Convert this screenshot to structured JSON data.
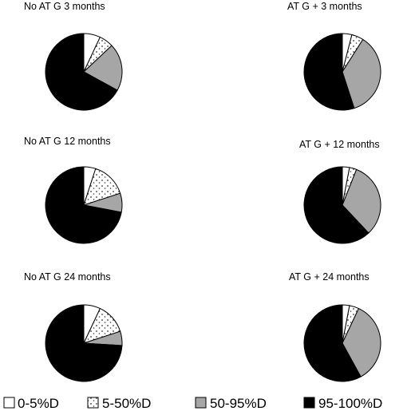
{
  "chart_data": [
    {
      "type": "pie",
      "title": "No AT G 3 months",
      "categories": [
        "0-5%D",
        "5-50%D",
        "50-95%D",
        "95-100%D"
      ],
      "values": [
        7,
        6,
        20,
        67
      ]
    },
    {
      "type": "pie",
      "title": "AT G + 3 months",
      "categories": [
        "0-5%D",
        "5-50%D",
        "50-95%D",
        "95-100%D"
      ],
      "values": [
        4,
        5,
        36,
        55
      ]
    },
    {
      "type": "pie",
      "title": "No AT G 12 months",
      "categories": [
        "0-5%D",
        "5-50%D",
        "50-95%D",
        "95-100%D"
      ],
      "values": [
        5,
        15,
        8,
        72
      ]
    },
    {
      "type": "pie",
      "title": "AT G + 12 months",
      "categories": [
        "0-5%D",
        "5-50%D",
        "50-95%D",
        "95-100%D"
      ],
      "values": [
        3,
        3,
        32,
        62
      ]
    },
    {
      "type": "pie",
      "title": "No AT G 24 months",
      "categories": [
        "0-5%D",
        "5-50%D",
        "50-95%D",
        "95-100%D"
      ],
      "values": [
        7,
        13,
        6,
        74
      ]
    },
    {
      "type": "pie",
      "title": "AT G + 24 months",
      "categories": [
        "0-5%D",
        "5-50%D",
        "50-95%D",
        "95-100%D"
      ],
      "values": [
        3,
        4,
        35,
        58
      ]
    }
  ],
  "legend": {
    "placement": "bottom",
    "items": [
      {
        "label": "0-5%D",
        "fill": "white"
      },
      {
        "label": "5-50%D",
        "fill": "dotted"
      },
      {
        "label": "50-95%D",
        "fill": "#a6a6a6"
      },
      {
        "label": "95-100%D",
        "fill": "#000000"
      }
    ]
  },
  "colors": {
    "white": "#ffffff",
    "dotted_bg": "#ffffff",
    "dotted_fg": "#333333",
    "gray": "#a6a6a6",
    "black": "#000000"
  }
}
